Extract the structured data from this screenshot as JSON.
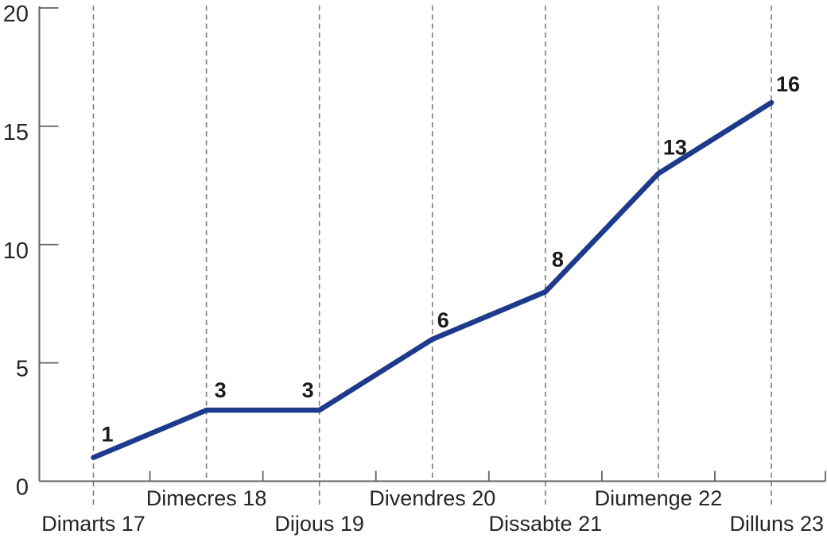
{
  "chart_data": {
    "type": "line",
    "title": "",
    "xlabel": "",
    "ylabel": "",
    "categories": [
      "Dimarts 17",
      "Dimecres 18",
      "Dijous 19",
      "Divendres 20",
      "Dissabte 21",
      "Diumenge 22",
      "Dilluns 23"
    ],
    "values": [
      1,
      3,
      3,
      6,
      8,
      13,
      16
    ],
    "point_labels": [
      "1",
      "3",
      "3",
      "6",
      "8",
      "13",
      "16"
    ],
    "ylim": [
      0,
      20
    ],
    "y_ticks": [
      0,
      5,
      10,
      15,
      20
    ],
    "grid": "vertical dashed line at every data point",
    "legend": "none",
    "x_label_layout": "two staggered rows: even days upper row, odd days lower row",
    "colors": {
      "line": "#1d3a8c",
      "axis": "#616161",
      "dashed_gridline": "#7d7d7d",
      "tick_label": "#262626",
      "value_label": "#1a1a1a",
      "background": "#ffffff"
    }
  }
}
